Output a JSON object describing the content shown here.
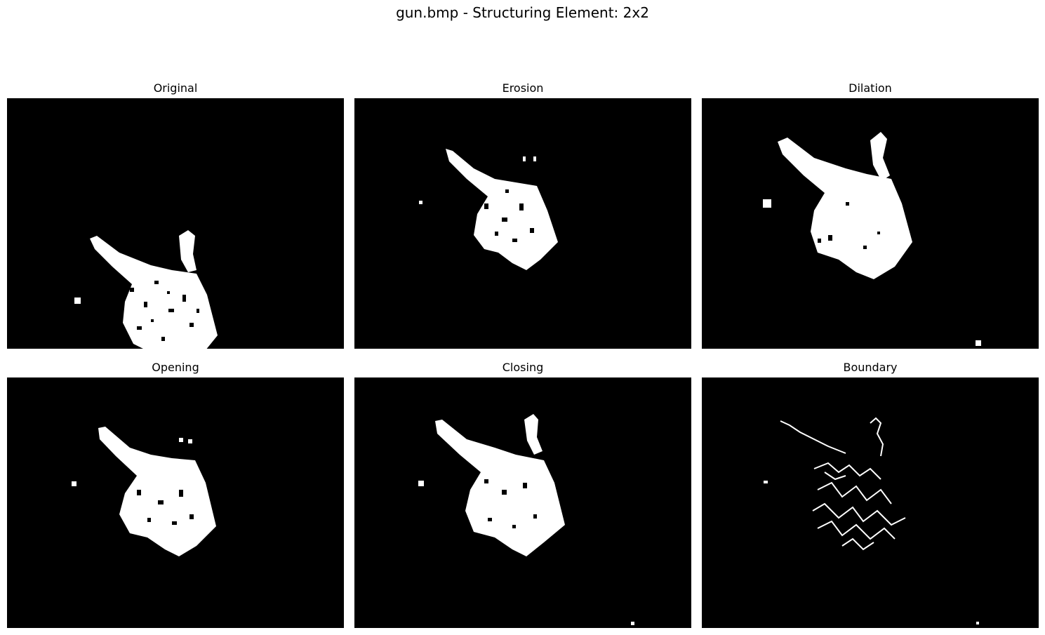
{
  "figure": {
    "title": "gun.bmp - Structuring Element: 2x2"
  },
  "panels": [
    {
      "title": "Original"
    },
    {
      "title": "Erosion"
    },
    {
      "title": "Dilation"
    },
    {
      "title": "Opening"
    },
    {
      "title": "Closing"
    },
    {
      "title": "Boundary"
    }
  ],
  "colors": {
    "background": "#000000",
    "foreground": "#ffffff",
    "page": "#ffffff"
  }
}
